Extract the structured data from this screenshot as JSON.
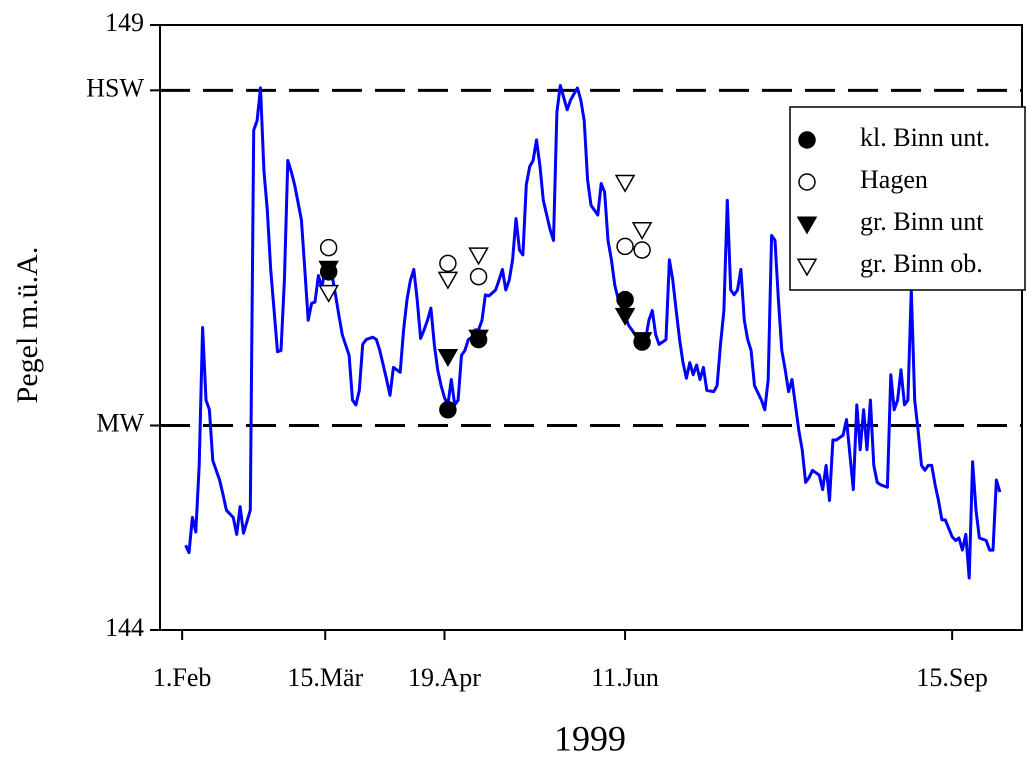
{
  "chart_data": {
    "type": "line",
    "x_label": "1999",
    "y_label": "Pegel m.ü.A.",
    "xlim": [
      25.5,
      278.5
    ],
    "ylim": [
      144,
      149
    ],
    "xticks": [
      {
        "value": 32,
        "label": "1.Feb"
      },
      {
        "value": 74,
        "label": "15.Mär"
      },
      {
        "value": 109,
        "label": "19.Apr"
      },
      {
        "value": 162,
        "label": "11.Jun"
      },
      {
        "value": 258,
        "label": "15.Sep"
      }
    ],
    "yticks": [
      144,
      {
        "value": 145.69,
        "label": "MW"
      },
      {
        "value": 148.46,
        "label": "HSW"
      },
      149
    ],
    "grid": "dashed-at-labelled-ticks",
    "legend": "upper-right",
    "series": [
      {
        "type": "line",
        "color": "#0000ff",
        "x": [
          33,
          34,
          35,
          36,
          37,
          38,
          39,
          40,
          41,
          43,
          44,
          45,
          47,
          48,
          49,
          50,
          52,
          53,
          54,
          55,
          56,
          57,
          58,
          60,
          61,
          62,
          63,
          64,
          65,
          67,
          68,
          69,
          70,
          71,
          72,
          73,
          74,
          75,
          76,
          77,
          78,
          79,
          81,
          82,
          83,
          84,
          85,
          86,
          88,
          89,
          90,
          91,
          92,
          93,
          94,
          96,
          97,
          98,
          99,
          100,
          101,
          102,
          103,
          104,
          105,
          106,
          107,
          108,
          109,
          110,
          111,
          112,
          113,
          114,
          115,
          116,
          117,
          118,
          119,
          120,
          121,
          122,
          124,
          125,
          126,
          127,
          128,
          129,
          130,
          131,
          132,
          133,
          134,
          135,
          136,
          137,
          138,
          140,
          141,
          142,
          143,
          145,
          146,
          148,
          149,
          150,
          151,
          152,
          153,
          154,
          155,
          156,
          157,
          158,
          159,
          160,
          161,
          162,
          163,
          165,
          166,
          167,
          168,
          169,
          170,
          171,
          172,
          174,
          175,
          176,
          177,
          178,
          179,
          180,
          181,
          182,
          183,
          184,
          185,
          186,
          188,
          189,
          190,
          191,
          192,
          193,
          194,
          195,
          196,
          197,
          198,
          199,
          200,
          202,
          203,
          204,
          205,
          206,
          207,
          208,
          209,
          210,
          211,
          212,
          213,
          214,
          215,
          216,
          217,
          219,
          220,
          221,
          222,
          223,
          224,
          226,
          227,
          228,
          229,
          230,
          231,
          232,
          233,
          234,
          235,
          236,
          237,
          239,
          240,
          241,
          242,
          243,
          244,
          245,
          246,
          247,
          248,
          249,
          250,
          251,
          252,
          253,
          254,
          255,
          256,
          258,
          259,
          260,
          261,
          262,
          263,
          264,
          265,
          266,
          268,
          269,
          270,
          271,
          272
        ],
        "values": [
          144.7,
          144.64,
          144.93,
          144.81,
          145.36,
          146.5,
          145.9,
          145.82,
          145.4,
          145.24,
          145.12,
          144.99,
          144.93,
          144.79,
          145.02,
          144.8,
          144.99,
          148.13,
          148.21,
          148.48,
          147.8,
          147.47,
          146.98,
          146.3,
          146.31,
          146.89,
          147.88,
          147.79,
          147.68,
          147.39,
          146.98,
          146.56,
          146.7,
          146.71,
          146.93,
          146.83,
          146.98,
          146.91,
          146.93,
          146.77,
          146.6,
          146.44,
          146.27,
          145.9,
          145.86,
          145.98,
          146.36,
          146.4,
          146.42,
          146.4,
          146.31,
          146.19,
          146.07,
          145.94,
          146.17,
          146.13,
          146.48,
          146.73,
          146.89,
          146.98,
          146.73,
          146.41,
          146.48,
          146.56,
          146.66,
          146.36,
          146.15,
          146.02,
          145.92,
          145.86,
          146.07,
          145.86,
          145.9,
          146.27,
          146.31,
          146.4,
          146.42,
          146.48,
          146.48,
          146.56,
          146.77,
          146.76,
          146.81,
          146.89,
          146.98,
          146.81,
          146.89,
          147.06,
          147.4,
          147.14,
          147.1,
          147.68,
          147.83,
          147.88,
          148.05,
          147.84,
          147.55,
          147.31,
          147.22,
          148.28,
          148.5,
          148.3,
          148.38,
          148.48,
          148.38,
          148.21,
          147.72,
          147.51,
          147.47,
          147.43,
          147.69,
          147.62,
          147.22,
          147.06,
          146.85,
          146.73,
          146.66,
          146.6,
          146.52,
          146.44,
          146.4,
          146.38,
          146.4,
          146.56,
          146.64,
          146.44,
          146.36,
          146.4,
          147.06,
          146.89,
          146.64,
          146.4,
          146.21,
          146.08,
          146.21,
          146.11,
          146.19,
          146.07,
          146.17,
          145.98,
          145.97,
          146.02,
          146.36,
          146.64,
          147.55,
          146.81,
          146.77,
          146.81,
          146.98,
          146.56,
          146.4,
          146.31,
          146.02,
          145.9,
          145.82,
          146.07,
          147.26,
          147.22,
          146.73,
          146.31,
          146.15,
          145.97,
          146.07,
          145.86,
          145.65,
          145.49,
          145.22,
          145.26,
          145.32,
          145.28,
          145.16,
          145.36,
          145.07,
          145.57,
          145.57,
          145.61,
          145.74,
          145.45,
          145.16,
          145.86,
          145.49,
          145.82,
          145.49,
          145.9,
          145.36,
          145.22,
          145.2,
          145.18,
          146.11,
          145.82,
          145.9,
          146.15,
          145.86,
          145.9,
          146.81,
          145.9,
          145.65,
          145.36,
          145.32,
          145.36,
          145.36,
          145.2,
          145.07,
          144.91,
          144.91,
          144.77,
          144.74,
          144.76,
          144.66,
          144.79,
          144.43,
          145.39,
          144.99,
          144.76,
          144.74,
          144.66,
          144.66,
          145.24,
          145.14
        ]
      },
      {
        "type": "scatter",
        "name": "kl. Binn unt.",
        "marker": "circle",
        "style": "filled",
        "color": "#000000",
        "x": [
          75,
          110,
          119,
          162,
          167
        ],
        "values": [
          146.96,
          145.82,
          146.4,
          146.73,
          146.38
        ]
      },
      {
        "type": "scatter",
        "name": "Hagen",
        "marker": "circle",
        "style": "open",
        "color": "#000000",
        "x": [
          75,
          110,
          119,
          162,
          167
        ],
        "values": [
          147.16,
          147.03,
          146.92,
          147.17,
          147.14
        ]
      },
      {
        "type": "scatter",
        "name": "gr. Binn unt",
        "marker": "triangle-down",
        "style": "filled",
        "color": "#000000",
        "x": [
          75,
          110,
          119,
          162,
          167
        ],
        "values": [
          146.99,
          146.26,
          146.42,
          146.6,
          146.4
        ]
      },
      {
        "type": "scatter",
        "name": "gr. Binn ob.",
        "marker": "triangle-down",
        "style": "open",
        "color": "#000000",
        "x": [
          75,
          110,
          119,
          162,
          167
        ],
        "values": [
          146.79,
          146.9,
          147.1,
          147.7,
          147.31
        ]
      }
    ]
  }
}
